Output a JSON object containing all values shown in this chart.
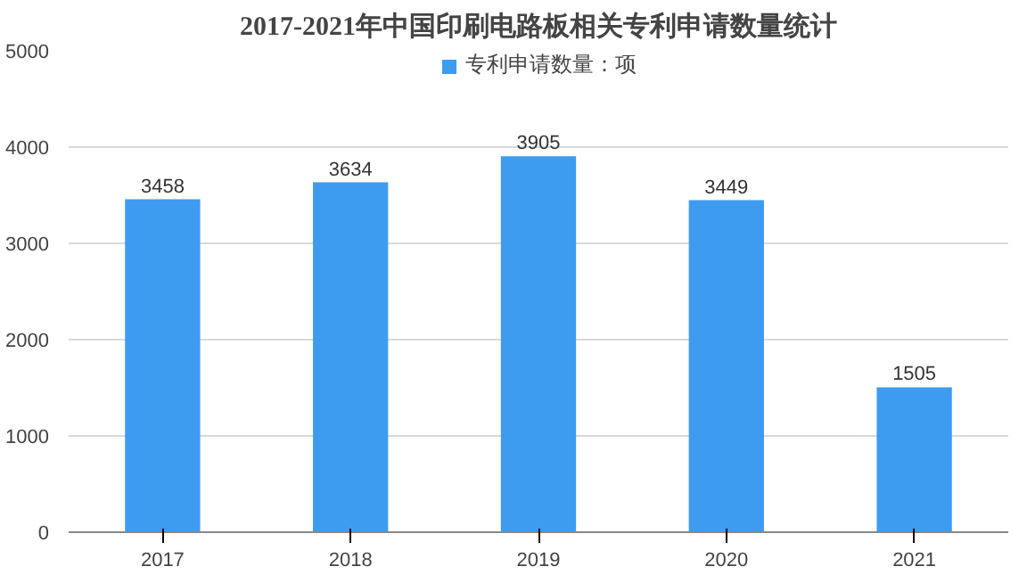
{
  "chart_data": {
    "type": "bar",
    "title": "2017-2021年中国印刷电路板相关专利申请数量统计",
    "categories": [
      "2017",
      "2018",
      "2019",
      "2020",
      "2021"
    ],
    "series": [
      {
        "name": "专利申请数量：项",
        "color": "#3d9cf0",
        "values": [
          3458,
          3634,
          3905,
          3449,
          1505
        ]
      }
    ],
    "ylim": [
      0,
      5000
    ],
    "yticks": [
      0,
      1000,
      2000,
      3000,
      4000,
      5000
    ],
    "grid": "y",
    "legend": "top",
    "data_labels": true
  }
}
